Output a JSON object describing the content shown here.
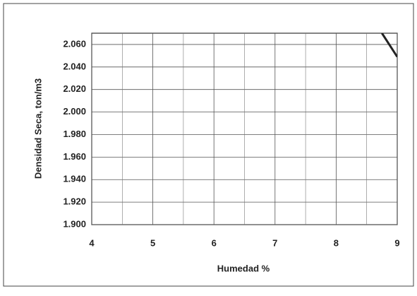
{
  "chart_data": {
    "type": "line",
    "xlabel": "Humedad  %",
    "ylabel": "Densidad  Seca, ton/m3",
    "xlim": [
      4,
      9
    ],
    "xticks": [
      4,
      5,
      6,
      7,
      8,
      9
    ],
    "x_minor_grid": [
      4.5,
      5.5,
      6.5,
      7.5,
      8.5
    ],
    "ylim": [
      1.9,
      2.07
    ],
    "yticks": [
      {
        "value": 1.9,
        "label": "1.900"
      },
      {
        "value": 1.92,
        "label": "1.920"
      },
      {
        "value": 1.94,
        "label": "1.940"
      },
      {
        "value": 1.96,
        "label": "1.960"
      },
      {
        "value": 1.98,
        "label": "1.980"
      },
      {
        "value": 2.0,
        "label": "2.000"
      },
      {
        "value": 2.02,
        "label": "2.020"
      },
      {
        "value": 2.04,
        "label": "2.040"
      },
      {
        "value": 2.06,
        "label": "2.060"
      }
    ],
    "grid": true,
    "series": [
      {
        "color": "#222222",
        "x": [
          8.75,
          9
        ],
        "values": [
          2.07,
          2.049
        ]
      }
    ]
  }
}
